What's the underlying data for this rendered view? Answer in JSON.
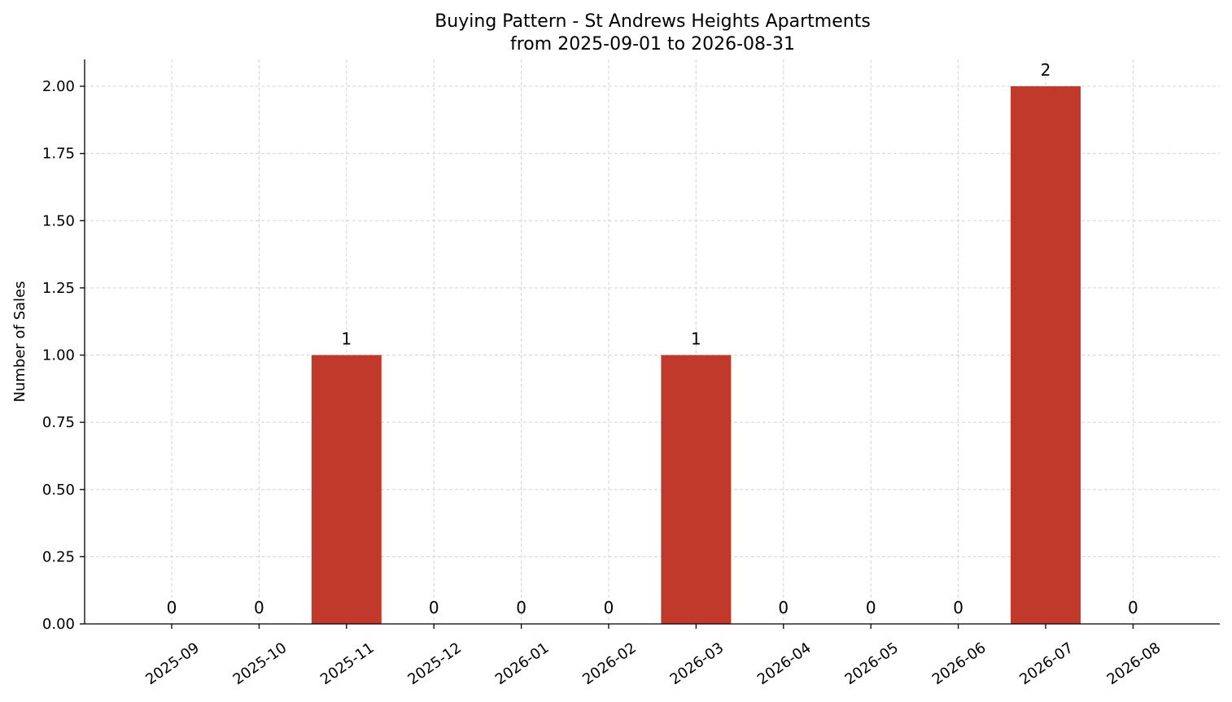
{
  "chart_data": {
    "type": "bar",
    "title": "Buying Pattern - St Andrews Heights Apartments",
    "subtitle": "from 2025-09-01 to 2026-08-31",
    "xlabel": "",
    "ylabel": "Number of Sales",
    "categories": [
      "2025-09",
      "2025-10",
      "2025-11",
      "2025-12",
      "2026-01",
      "2026-02",
      "2026-03",
      "2026-04",
      "2026-05",
      "2026-06",
      "2026-07",
      "2026-08"
    ],
    "values": [
      0,
      0,
      1,
      0,
      0,
      0,
      1,
      0,
      0,
      0,
      2,
      0
    ],
    "data_labels": [
      "0",
      "0",
      "1",
      "0",
      "0",
      "0",
      "1",
      "0",
      "0",
      "0",
      "2",
      "0"
    ],
    "ylim": [
      0,
      2.1
    ],
    "yticks": [
      0,
      0.25,
      0.5,
      0.75,
      1.0,
      1.25,
      1.5,
      1.75,
      2.0
    ],
    "ytick_labels": [
      "0.00",
      "0.25",
      "0.50",
      "0.75",
      "1.00",
      "1.25",
      "1.50",
      "1.75",
      "2.00"
    ],
    "grid": true,
    "bar_color": "#c0392b"
  }
}
